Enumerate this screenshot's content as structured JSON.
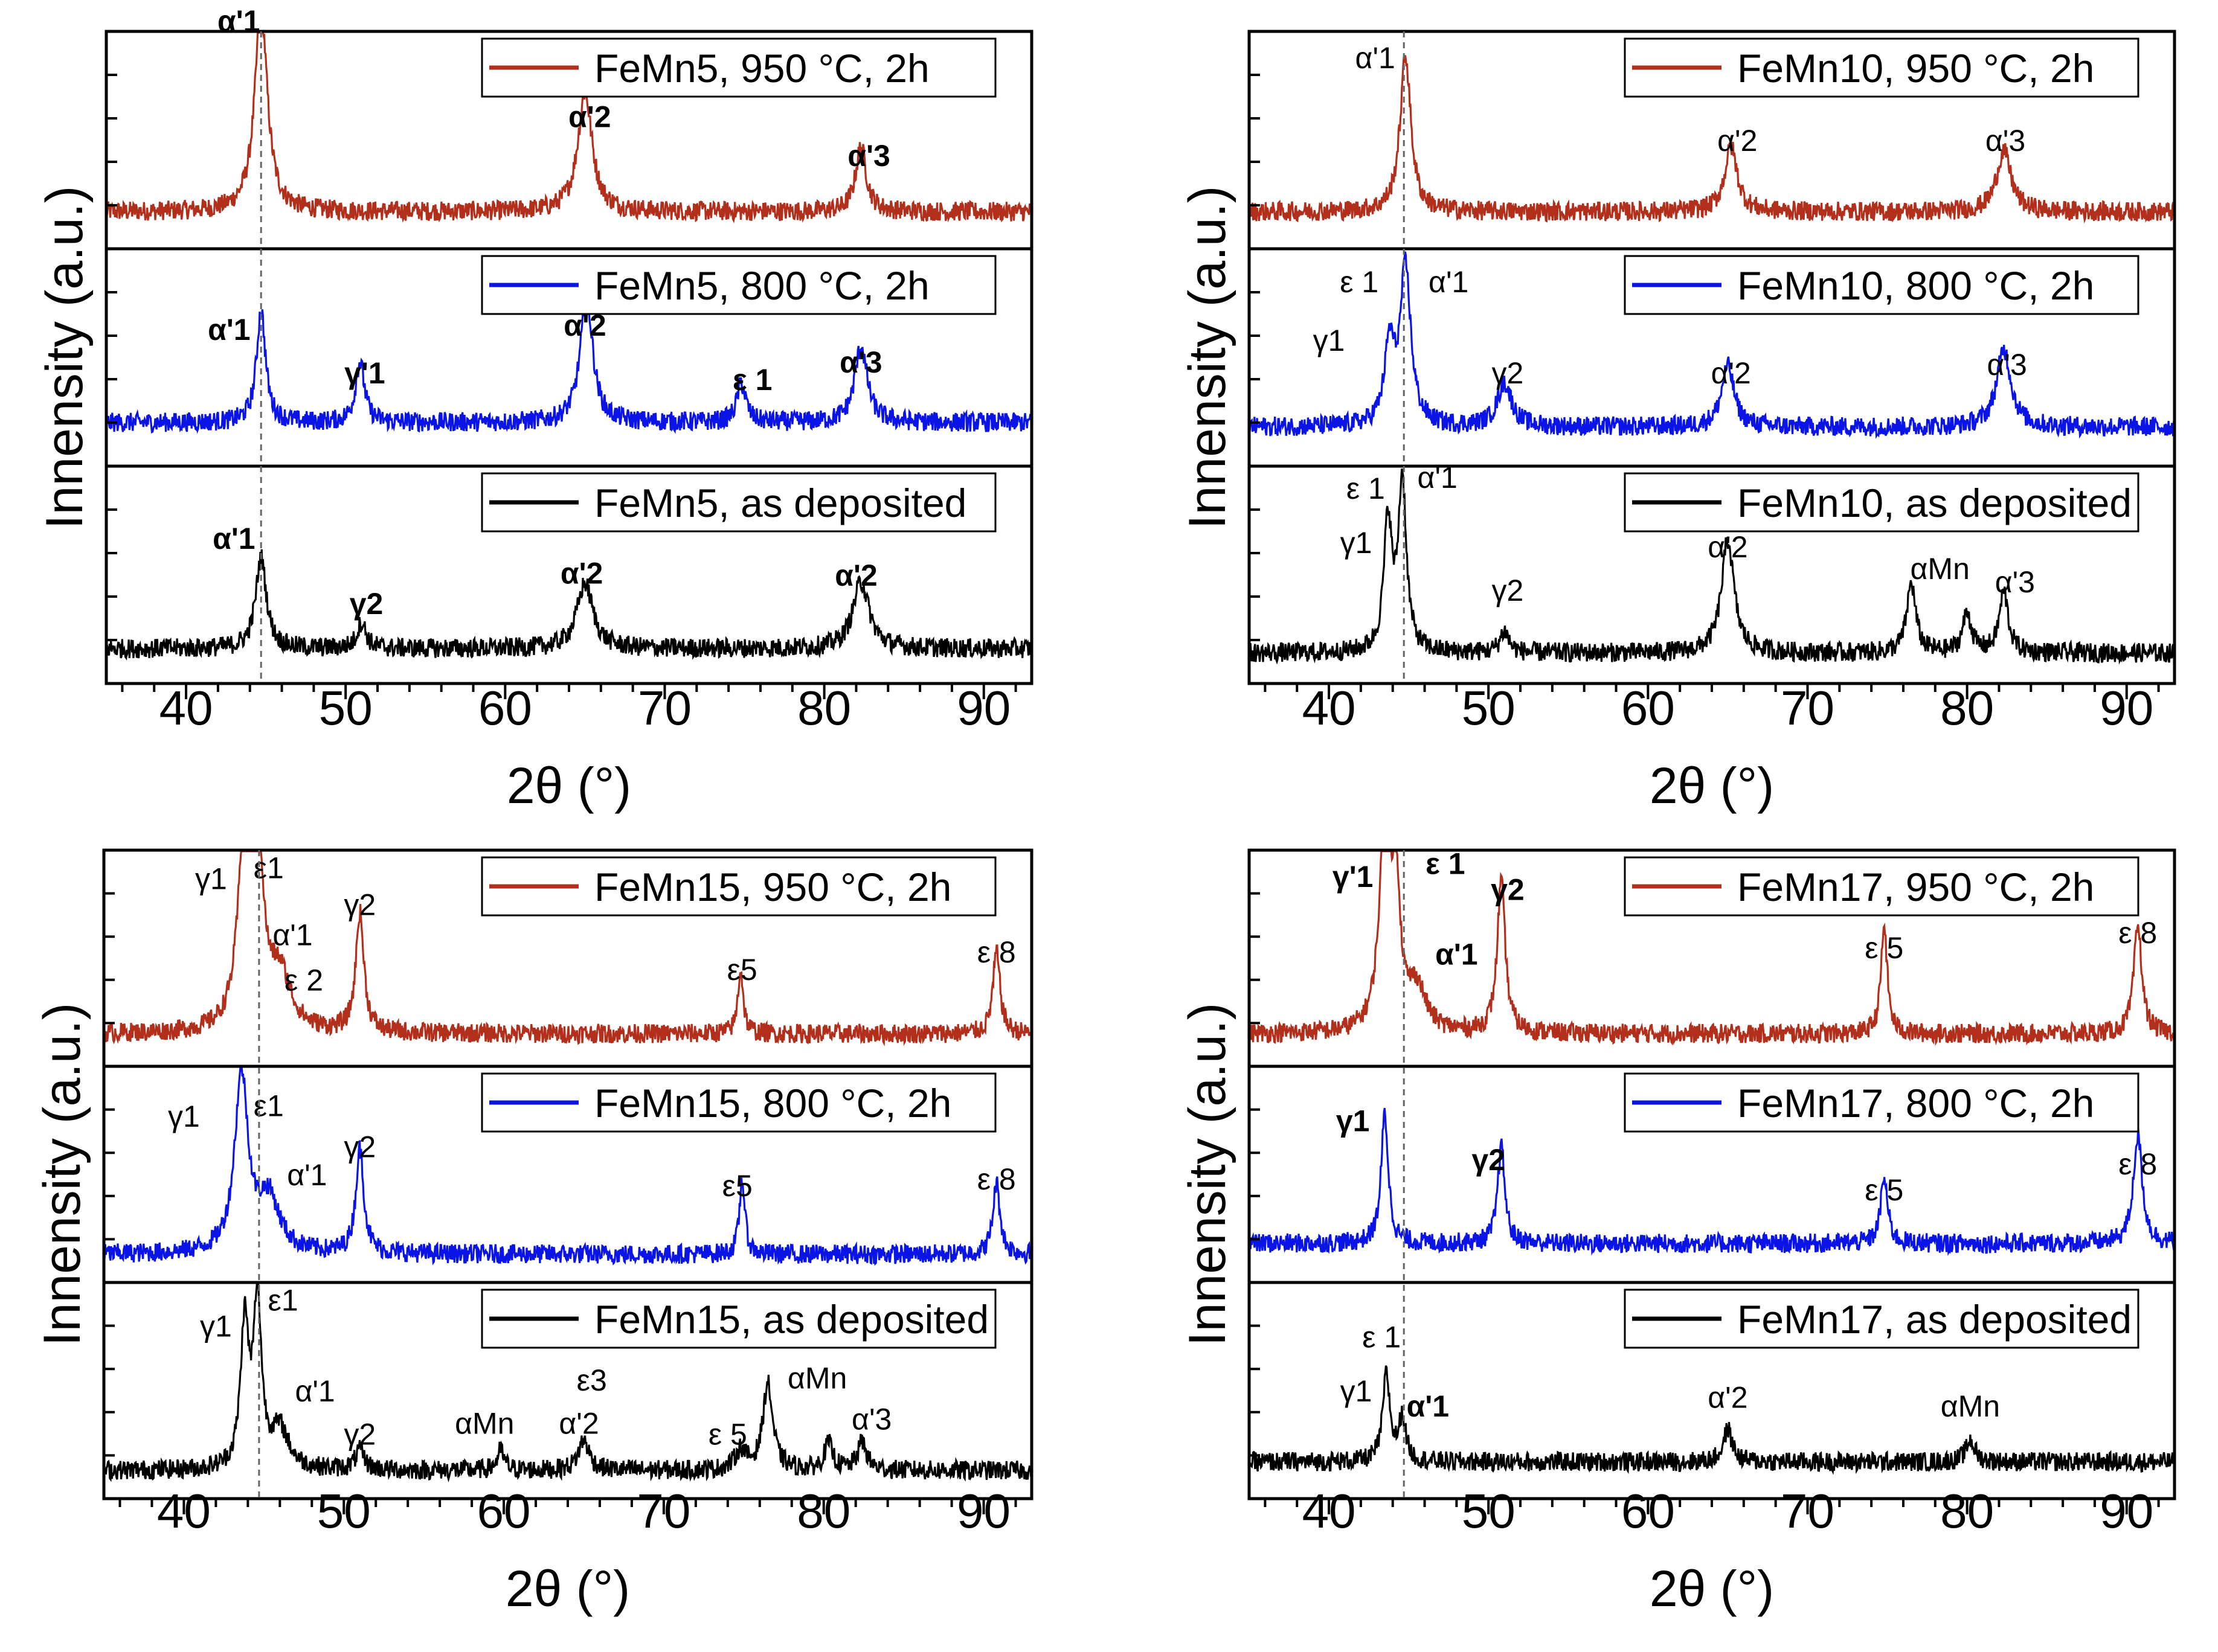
{
  "chart_data": [
    {
      "type": "line",
      "xlabel": "2θ (°)",
      "ylabel": "Innensity (a.u.)",
      "xlim": [
        35,
        93
      ],
      "xticks": [
        40,
        50,
        60,
        70,
        80,
        90
      ],
      "reference_line_x": 44.7,
      "panels": [
        {
          "legend": "FeMn5, 950 °C, 2h",
          "color": "#b22f1c",
          "baseline": 0.17,
          "peaks": [
            {
              "x": 44.7,
              "h": 0.95,
              "w": 0.7
            },
            {
              "x": 65.0,
              "h": 0.55,
              "w": 0.8
            },
            {
              "x": 82.3,
              "h": 0.3,
              "w": 0.6
            }
          ],
          "annotations": [
            {
              "text": "α'1",
              "x": 43.3,
              "y": 1.0,
              "bold": true
            },
            {
              "text": "α'2",
              "x": 65.3,
              "y": 0.56,
              "bold": true
            },
            {
              "text": "α'3",
              "x": 82.8,
              "y": 0.38,
              "bold": true
            }
          ]
        },
        {
          "legend": "FeMn5, 800 °C, 2h",
          "color": "#0a14e6",
          "baseline": 0.2,
          "peaks": [
            {
              "x": 44.7,
              "h": 0.52,
              "w": 0.5
            },
            {
              "x": 50.9,
              "h": 0.28,
              "w": 0.5
            },
            {
              "x": 65.1,
              "h": 0.58,
              "w": 0.7
            },
            {
              "x": 74.8,
              "h": 0.18,
              "w": 0.5
            },
            {
              "x": 82.3,
              "h": 0.35,
              "w": 0.7
            }
          ],
          "annotations": [
            {
              "text": "α'1",
              "x": 42.7,
              "y": 0.58,
              "bold": true
            },
            {
              "text": "γ'1",
              "x": 51.2,
              "y": 0.38,
              "bold": true
            },
            {
              "text": "α'2",
              "x": 65.0,
              "y": 0.6,
              "bold": true
            },
            {
              "text": "ε 1",
              "x": 75.5,
              "y": 0.35,
              "bold": true
            },
            {
              "text": "α'3",
              "x": 82.3,
              "y": 0.43,
              "bold": true
            }
          ]
        },
        {
          "legend": "FeMn5, as deposited",
          "color": "#000000",
          "baseline": 0.16,
          "peaks": [
            {
              "x": 44.7,
              "h": 0.42,
              "w": 0.6
            },
            {
              "x": 51.0,
              "h": 0.12,
              "w": 0.5
            },
            {
              "x": 65.0,
              "h": 0.3,
              "w": 0.9
            },
            {
              "x": 82.3,
              "h": 0.31,
              "w": 0.9
            }
          ],
          "annotations": [
            {
              "text": "α'1",
              "x": 43.0,
              "y": 0.62,
              "bold": true
            },
            {
              "text": "γ2",
              "x": 51.3,
              "y": 0.32,
              "bold": true
            },
            {
              "text": "α'2",
              "x": 64.8,
              "y": 0.46,
              "bold": true
            },
            {
              "text": "α'2",
              "x": 82.0,
              "y": 0.45,
              "bold": true
            }
          ]
        },
        {
          "legend": "FeMn10, 950 °C, 2h",
          "color": "#b22f1c",
          "baseline": 0.17,
          "peaks": [
            {
              "x": 44.8,
              "h": 0.72,
              "w": 0.6
            },
            {
              "x": 65.2,
              "h": 0.3,
              "w": 0.7
            },
            {
              "x": 82.3,
              "h": 0.28,
              "w": 0.8
            }
          ],
          "annotations": [
            {
              "text": "α'1",
              "x": 42.9,
              "y": 0.83,
              "bold": false
            },
            {
              "text": "α'2",
              "x": 65.6,
              "y": 0.45,
              "bold": false
            },
            {
              "text": "α'3",
              "x": 82.4,
              "y": 0.45,
              "bold": false
            }
          ]
        },
        {
          "legend": "FeMn10, 800 °C, 2h",
          "color": "#0a14e6",
          "baseline": 0.18,
          "peaks": [
            {
              "x": 43.8,
              "h": 0.36,
              "w": 0.55
            },
            {
              "x": 44.8,
              "h": 0.72,
              "w": 0.6
            },
            {
              "x": 51.0,
              "h": 0.2,
              "w": 0.8
            },
            {
              "x": 65.0,
              "h": 0.28,
              "w": 0.7
            },
            {
              "x": 82.3,
              "h": 0.36,
              "w": 0.8
            }
          ],
          "annotations": [
            {
              "text": "ε 1",
              "x": 41.9,
              "y": 0.8,
              "bold": false
            },
            {
              "text": "α'1",
              "x": 47.5,
              "y": 0.8,
              "bold": false
            },
            {
              "text": "γ1",
              "x": 40.0,
              "y": 0.53,
              "bold": false
            },
            {
              "text": "γ2",
              "x": 51.2,
              "y": 0.38,
              "bold": false
            },
            {
              "text": "α'2",
              "x": 65.2,
              "y": 0.38,
              "bold": false
            },
            {
              "text": "α'3",
              "x": 82.5,
              "y": 0.42,
              "bold": false
            }
          ]
        },
        {
          "legend": "FeMn10, as deposited",
          "color": "#000000",
          "baseline": 0.14,
          "peaks": [
            {
              "x": 43.7,
              "h": 0.6,
              "w": 0.45
            },
            {
              "x": 44.6,
              "h": 0.78,
              "w": 0.45
            },
            {
              "x": 51.0,
              "h": 0.1,
              "w": 0.5
            },
            {
              "x": 65.0,
              "h": 0.52,
              "w": 0.7
            },
            {
              "x": 76.5,
              "h": 0.32,
              "w": 0.5
            },
            {
              "x": 80.0,
              "h": 0.18,
              "w": 0.5
            },
            {
              "x": 82.3,
              "h": 0.28,
              "w": 0.5
            }
          ],
          "annotations": [
            {
              "text": "ε 1",
              "x": 42.3,
              "y": 0.85,
              "bold": false
            },
            {
              "text": "α'1",
              "x": 46.8,
              "y": 0.9,
              "bold": false
            },
            {
              "text": "γ1",
              "x": 41.7,
              "y": 0.6,
              "bold": false
            },
            {
              "text": "γ2",
              "x": 51.2,
              "y": 0.38,
              "bold": false
            },
            {
              "text": "α'2",
              "x": 65.0,
              "y": 0.58,
              "bold": false
            },
            {
              "text": "αMn",
              "x": 78.3,
              "y": 0.48,
              "bold": false
            },
            {
              "text": "α'3",
              "x": 83.0,
              "y": 0.42,
              "bold": false
            }
          ]
        },
        {
          "legend": "FeMn15, 950 °C, 2h",
          "color": "#b22f1c",
          "baseline": 0.15,
          "peaks": [
            {
              "x": 43.8,
              "h": 0.9,
              "w": 0.7
            },
            {
              "x": 44.6,
              "h": 0.85,
              "w": 0.6
            },
            {
              "x": 46.0,
              "h": 0.25,
              "w": 1.2
            },
            {
              "x": 51.0,
              "h": 0.55,
              "w": 0.45
            },
            {
              "x": 74.8,
              "h": 0.3,
              "w": 0.3
            },
            {
              "x": 90.8,
              "h": 0.38,
              "w": 0.4
            }
          ],
          "annotations": [
            {
              "text": "γ1",
              "x": 41.7,
              "y": 0.82,
              "bold": false
            },
            {
              "text": "ε1",
              "x": 45.3,
              "y": 0.87,
              "bold": false
            },
            {
              "text": "α'1",
              "x": 46.8,
              "y": 0.56,
              "bold": false
            },
            {
              "text": "ε 2",
              "x": 47.5,
              "y": 0.35,
              "bold": false
            },
            {
              "text": "γ2",
              "x": 51.0,
              "y": 0.7,
              "bold": false
            },
            {
              "text": "ε5",
              "x": 74.9,
              "y": 0.4,
              "bold": false
            },
            {
              "text": "ε 8",
              "x": 90.8,
              "y": 0.48,
              "bold": false
            }
          ]
        },
        {
          "legend": "FeMn15, 800 °C, 2h",
          "color": "#0a14e6",
          "baseline": 0.13,
          "peaks": [
            {
              "x": 43.6,
              "h": 0.82,
              "w": 0.75
            },
            {
              "x": 45.3,
              "h": 0.25,
              "w": 1.2
            },
            {
              "x": 51.0,
              "h": 0.48,
              "w": 0.45
            },
            {
              "x": 74.9,
              "h": 0.35,
              "w": 0.3
            },
            {
              "x": 90.8,
              "h": 0.33,
              "w": 0.4
            }
          ],
          "annotations": [
            {
              "text": "γ1",
              "x": 40.0,
              "y": 0.72,
              "bold": false
            },
            {
              "text": "ε1",
              "x": 45.3,
              "y": 0.77,
              "bold": false
            },
            {
              "text": "α'1",
              "x": 47.7,
              "y": 0.45,
              "bold": false
            },
            {
              "text": "γ2",
              "x": 51.0,
              "y": 0.58,
              "bold": false
            },
            {
              "text": "ε5",
              "x": 74.6,
              "y": 0.4,
              "bold": false
            },
            {
              "text": "ε 8",
              "x": 90.8,
              "y": 0.43,
              "bold": false
            }
          ]
        },
        {
          "legend": "FeMn15, as deposited",
          "color": "#000000",
          "baseline": 0.13,
          "peaks": [
            {
              "x": 43.8,
              "h": 0.66,
              "w": 0.45
            },
            {
              "x": 44.6,
              "h": 0.76,
              "w": 0.45
            },
            {
              "x": 46.0,
              "h": 0.18,
              "w": 1.0
            },
            {
              "x": 51.0,
              "h": 0.09,
              "w": 0.5
            },
            {
              "x": 59.8,
              "h": 0.09,
              "w": 0.4
            },
            {
              "x": 65.0,
              "h": 0.14,
              "w": 0.6
            },
            {
              "x": 74.8,
              "h": 0.09,
              "w": 0.6
            },
            {
              "x": 76.5,
              "h": 0.4,
              "w": 0.55
            },
            {
              "x": 80.3,
              "h": 0.12,
              "w": 0.5
            },
            {
              "x": 82.4,
              "h": 0.13,
              "w": 0.5
            }
          ],
          "annotations": [
            {
              "text": "γ1",
              "x": 42.0,
              "y": 0.75,
              "bold": false
            },
            {
              "text": "ε1",
              "x": 46.2,
              "y": 0.87,
              "bold": false
            },
            {
              "text": "α'1",
              "x": 48.2,
              "y": 0.45,
              "bold": false
            },
            {
              "text": "γ2",
              "x": 51.0,
              "y": 0.25,
              "bold": false
            },
            {
              "text": "αMn",
              "x": 58.8,
              "y": 0.3,
              "bold": false
            },
            {
              "text": "ε3",
              "x": 65.5,
              "y": 0.5,
              "bold": false
            },
            {
              "text": "α'2",
              "x": 64.7,
              "y": 0.3,
              "bold": false
            },
            {
              "text": "ε 5",
              "x": 74.0,
              "y": 0.25,
              "bold": false
            },
            {
              "text": "αMn",
              "x": 79.6,
              "y": 0.51,
              "bold": false
            },
            {
              "text": "α'3",
              "x": 83.0,
              "y": 0.32,
              "bold": false
            }
          ]
        },
        {
          "legend": "FeMn17, 950 °C, 2h",
          "color": "#b22f1c",
          "baseline": 0.15,
          "peaks": [
            {
              "x": 43.5,
              "h": 0.95,
              "w": 0.6
            },
            {
              "x": 44.2,
              "h": 0.65,
              "w": 0.45
            },
            {
              "x": 45.5,
              "h": 0.2,
              "w": 1.0
            },
            {
              "x": 50.8,
              "h": 0.7,
              "w": 0.45
            },
            {
              "x": 74.8,
              "h": 0.5,
              "w": 0.35
            },
            {
              "x": 90.7,
              "h": 0.5,
              "w": 0.45
            }
          ],
          "annotations": [
            {
              "text": "γ'1",
              "x": 41.5,
              "y": 0.83,
              "bold": true
            },
            {
              "text": "ε 1",
              "x": 47.3,
              "y": 0.89,
              "bold": true
            },
            {
              "text": "α'1",
              "x": 48.0,
              "y": 0.47,
              "bold": true
            },
            {
              "text": "γ2",
              "x": 51.2,
              "y": 0.77,
              "bold": true
            },
            {
              "text": "ε 5",
              "x": 74.8,
              "y": 0.5,
              "bold": false
            },
            {
              "text": "ε 8",
              "x": 90.7,
              "y": 0.57,
              "bold": false
            }
          ]
        },
        {
          "legend": "FeMn17, 800 °C, 2h",
          "color": "#0a14e6",
          "baseline": 0.18,
          "peaks": [
            {
              "x": 43.5,
              "h": 0.6,
              "w": 0.4
            },
            {
              "x": 50.8,
              "h": 0.45,
              "w": 0.4
            },
            {
              "x": 74.8,
              "h": 0.3,
              "w": 0.4
            },
            {
              "x": 90.7,
              "h": 0.5,
              "w": 0.5
            }
          ],
          "annotations": [
            {
              "text": "γ1",
              "x": 41.5,
              "y": 0.7,
              "bold": true
            },
            {
              "text": "γ2",
              "x": 50.0,
              "y": 0.52,
              "bold": true
            },
            {
              "text": "ε 5",
              "x": 74.8,
              "y": 0.38,
              "bold": false
            },
            {
              "text": "ε 8",
              "x": 90.7,
              "y": 0.5,
              "bold": false
            }
          ]
        },
        {
          "legend": "FeMn17, as deposited",
          "color": "#000000",
          "baseline": 0.17,
          "peaks": [
            {
              "x": 43.6,
              "h": 0.4,
              "w": 0.4
            },
            {
              "x": 44.6,
              "h": 0.2,
              "w": 0.4
            },
            {
              "x": 65.0,
              "h": 0.15,
              "w": 0.5
            },
            {
              "x": 80.2,
              "h": 0.1,
              "w": 0.5
            }
          ],
          "annotations": [
            {
              "text": "ε 1",
              "x": 43.3,
              "y": 0.7,
              "bold": false
            },
            {
              "text": "γ1",
              "x": 41.7,
              "y": 0.45,
              "bold": false
            },
            {
              "text": "α'1",
              "x": 46.2,
              "y": 0.38,
              "bold": true
            },
            {
              "text": "α'2",
              "x": 65.0,
              "y": 0.42,
              "bold": false
            },
            {
              "text": "αMn",
              "x": 80.2,
              "y": 0.38,
              "bold": false
            }
          ]
        }
      ]
    }
  ]
}
